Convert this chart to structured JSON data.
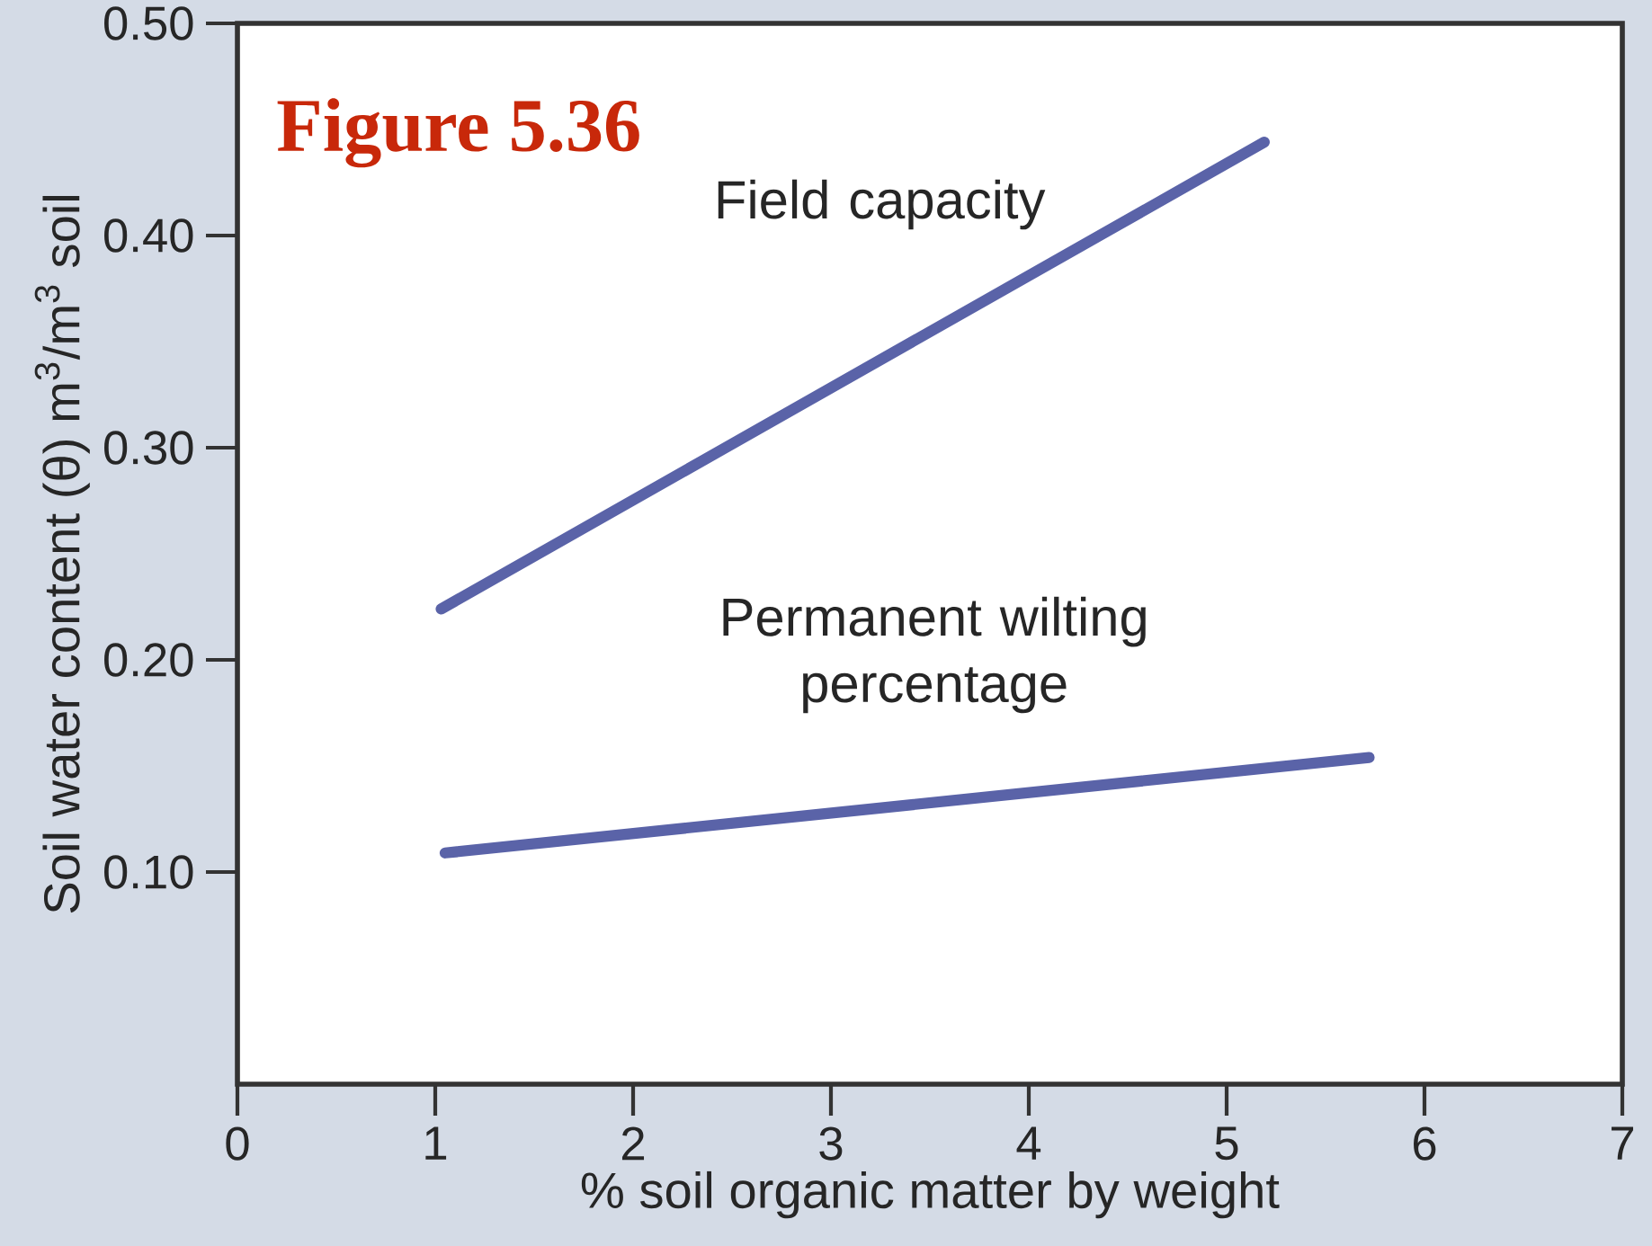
{
  "chart_data": {
    "type": "line",
    "title": "Figure 5.36",
    "xlabel": "% soil organic matter by weight",
    "ylabel": "Soil water content (θ) m$^{3}$/m$^{3}$ soil",
    "xlim": [
      0,
      7
    ],
    "ylim": [
      0,
      0.5
    ],
    "xticks": [
      0,
      1,
      2,
      3,
      4,
      5,
      6,
      7
    ],
    "yticks": [
      {
        "value": 0.1,
        "label": "0.10"
      },
      {
        "value": 0.2,
        "label": "0.20"
      },
      {
        "value": 0.3,
        "label": "0.30"
      },
      {
        "value": 0.4,
        "label": "0.40"
      },
      {
        "value": 0.5,
        "label": "0.50"
      }
    ],
    "series": [
      {
        "name": "Field capacity",
        "color": "#5a63a8",
        "x": [
          1.03,
          5.19
        ],
        "values": [
          0.224,
          0.444
        ]
      },
      {
        "name": "Permanent wilting percentage",
        "color": "#5a63a8",
        "x": [
          1.05,
          5.72
        ],
        "values": [
          0.109,
          0.154
        ]
      }
    ],
    "marker": "none",
    "line_style": "solid"
  }
}
